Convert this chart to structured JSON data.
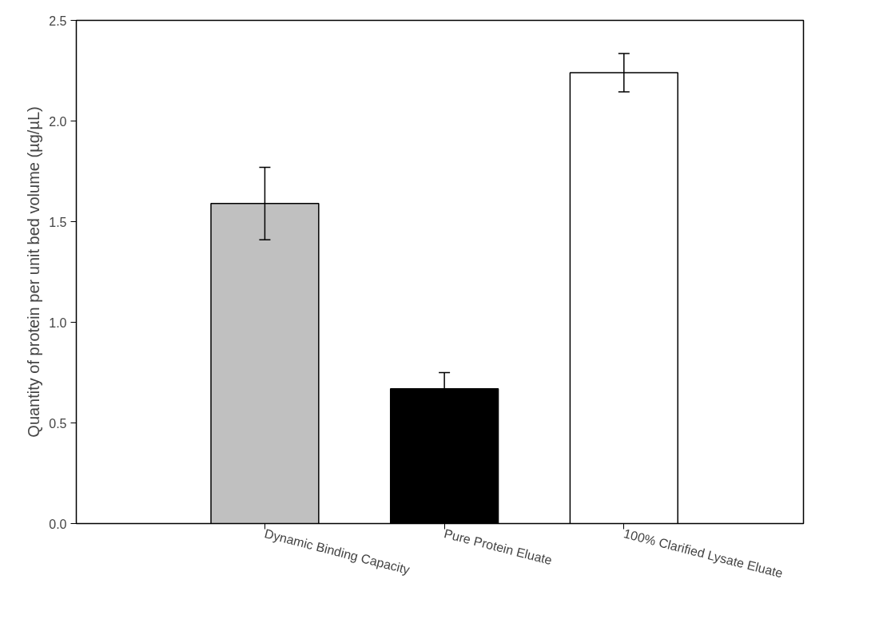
{
  "chart_data": {
    "type": "bar",
    "ylabel": "Quantity of protein per unit bed volume (µg/µL)",
    "categories": [
      "Dynamic Binding Capacity",
      "Pure Protein Eluate",
      "100% Clarified Lysate Eluate"
    ],
    "values": [
      1.59,
      0.67,
      2.24
    ],
    "errors": [
      0.18,
      0.08,
      0.095
    ],
    "colors": [
      "#c0c0c0",
      "#000000",
      "#ffffff"
    ],
    "ylim": [
      0,
      2.5
    ],
    "yticks": [
      {
        "value": 0,
        "label": "0.0"
      },
      {
        "value": 0.5,
        "label": "0.5"
      },
      {
        "value": 1,
        "label": "1.0"
      },
      {
        "value": 1.5,
        "label": "1.5"
      },
      {
        "value": 2,
        "label": "2.0"
      },
      {
        "value": 2.5,
        "label": "2.5"
      }
    ],
    "grid": false
  }
}
